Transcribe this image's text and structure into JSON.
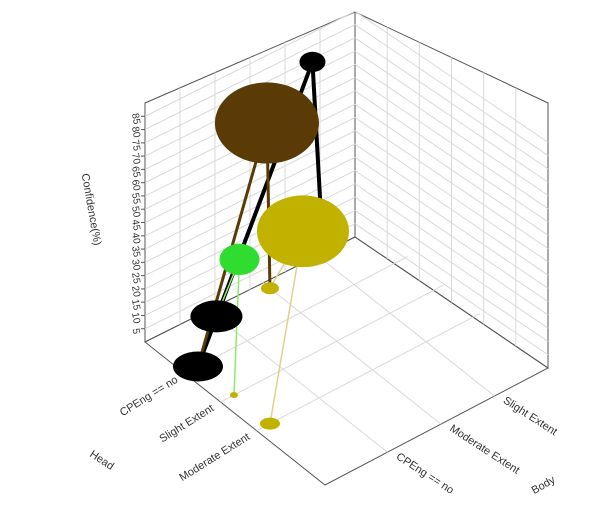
{
  "chart_data": {
    "type": "3d-scatter",
    "title": "",
    "z_axis": {
      "label": "Confidence(%)",
      "ticks": [
        5,
        10,
        15,
        20,
        25,
        30,
        35,
        40,
        45,
        50,
        55,
        60,
        65,
        70,
        75,
        80,
        85
      ],
      "range": [
        0,
        90
      ]
    },
    "head_axis": {
      "label": "Head",
      "categories": [
        "CPEng == no",
        "Slight Extent",
        "Moderate Extent"
      ]
    },
    "body_axis": {
      "label": "Body",
      "categories": [
        "CPEng == no",
        "Moderate Extent",
        "Slight Extent"
      ]
    },
    "grid": true,
    "colors": {
      "black": "#000000",
      "dark_brown": "#5a3a05",
      "olive": "#c2b200",
      "green": "#2fdc2f",
      "light_green": "#88ee66",
      "beige": "#d9d48c"
    },
    "nodes": [
      {
        "id": "head-cpeng-no",
        "axis": "head",
        "category": "CPEng == no",
        "color": "black"
      },
      {
        "id": "head-slight",
        "axis": "head",
        "category": "Slight Extent",
        "color": "olive"
      },
      {
        "id": "head-moderate",
        "axis": "head",
        "category": "Moderate Extent",
        "color": "olive"
      },
      {
        "id": "body-cpeng-no",
        "axis": "body",
        "category": "CPEng == no",
        "color": "black"
      },
      {
        "id": "body-moderate",
        "axis": "body",
        "category": "Moderate Extent",
        "color": "olive"
      },
      {
        "id": "body-slight",
        "axis": "body",
        "category": "Slight Extent",
        "color": "black"
      }
    ],
    "rules": [
      {
        "head": "CPEng == no",
        "body": "Slight Extent",
        "confidence": 84,
        "color": "black"
      },
      {
        "head": "CPEng == no",
        "body": "Moderate Extent",
        "confidence": 70,
        "color": "dark_brown"
      },
      {
        "head": "Moderate Extent",
        "body": "Moderate Extent",
        "confidence": 40,
        "color": "olive"
      },
      {
        "head": "Slight Extent",
        "body": "CPEng == no",
        "confidence": 33,
        "color": "green"
      }
    ]
  }
}
